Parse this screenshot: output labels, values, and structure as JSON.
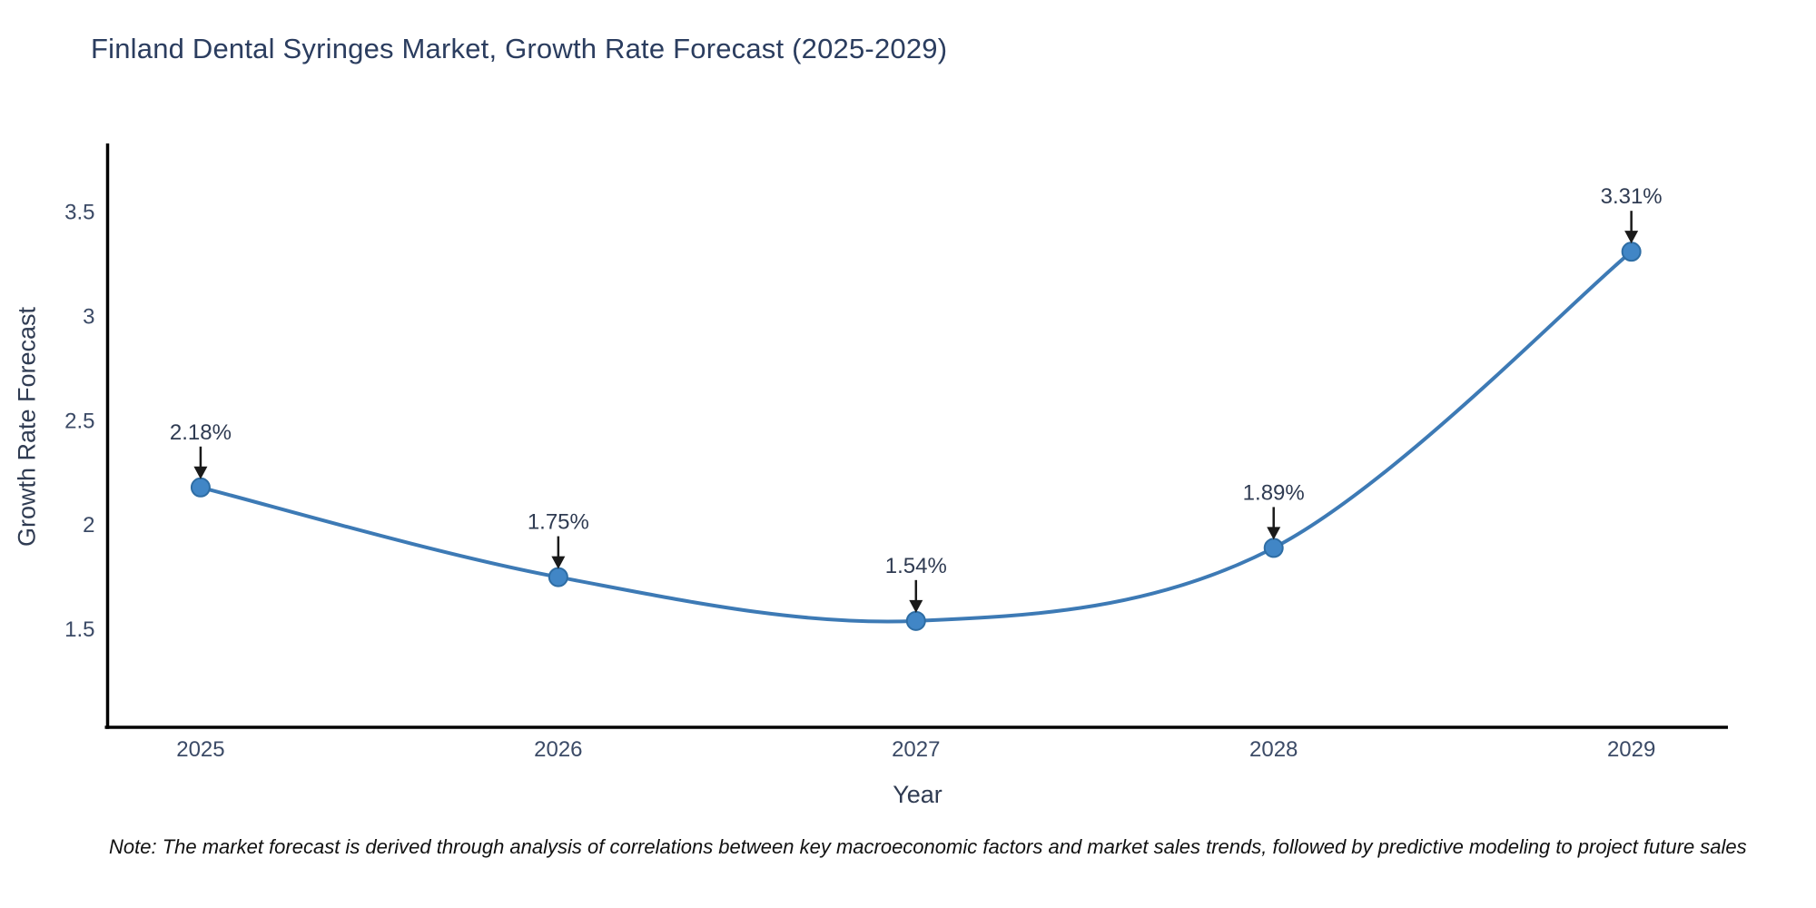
{
  "chart_data": {
    "type": "line",
    "title": "Finland Dental Syringes Market, Growth Rate Forecast (2025-2029)",
    "xlabel": "Year",
    "ylabel": "Growth Rate Forecast",
    "x": [
      2025,
      2026,
      2027,
      2028,
      2029
    ],
    "y": [
      2.18,
      1.75,
      1.54,
      1.89,
      3.31
    ],
    "point_labels": [
      "2.18%",
      "1.75%",
      "1.54%",
      "1.89%",
      "3.31%"
    ],
    "xticks": [
      "2025",
      "2026",
      "2027",
      "2028",
      "2029"
    ],
    "yticks": [
      1.5,
      2,
      2.5,
      3,
      3.5
    ],
    "ytick_labels": [
      "1.5",
      "2",
      "2.5",
      "3",
      "3.5"
    ],
    "xlim": [
      2024.74,
      2029.27
    ],
    "ylim": [
      1.03,
      3.82
    ],
    "grid": false,
    "legend": false,
    "line_shape": "spline",
    "line_color": "#3d7ab5",
    "marker_color": "#4186c6",
    "marker_edge_color": "#2e6da4",
    "axis_color": "#000000",
    "tick_color": "#3b4a66",
    "annotation_color": "#2f3b52",
    "arrow_color": "#1a1a1a"
  },
  "note": "Note: The market forecast is derived through analysis of correlations between key macroeconomic factors and market sales trends, followed by predictive modeling to project future sales"
}
